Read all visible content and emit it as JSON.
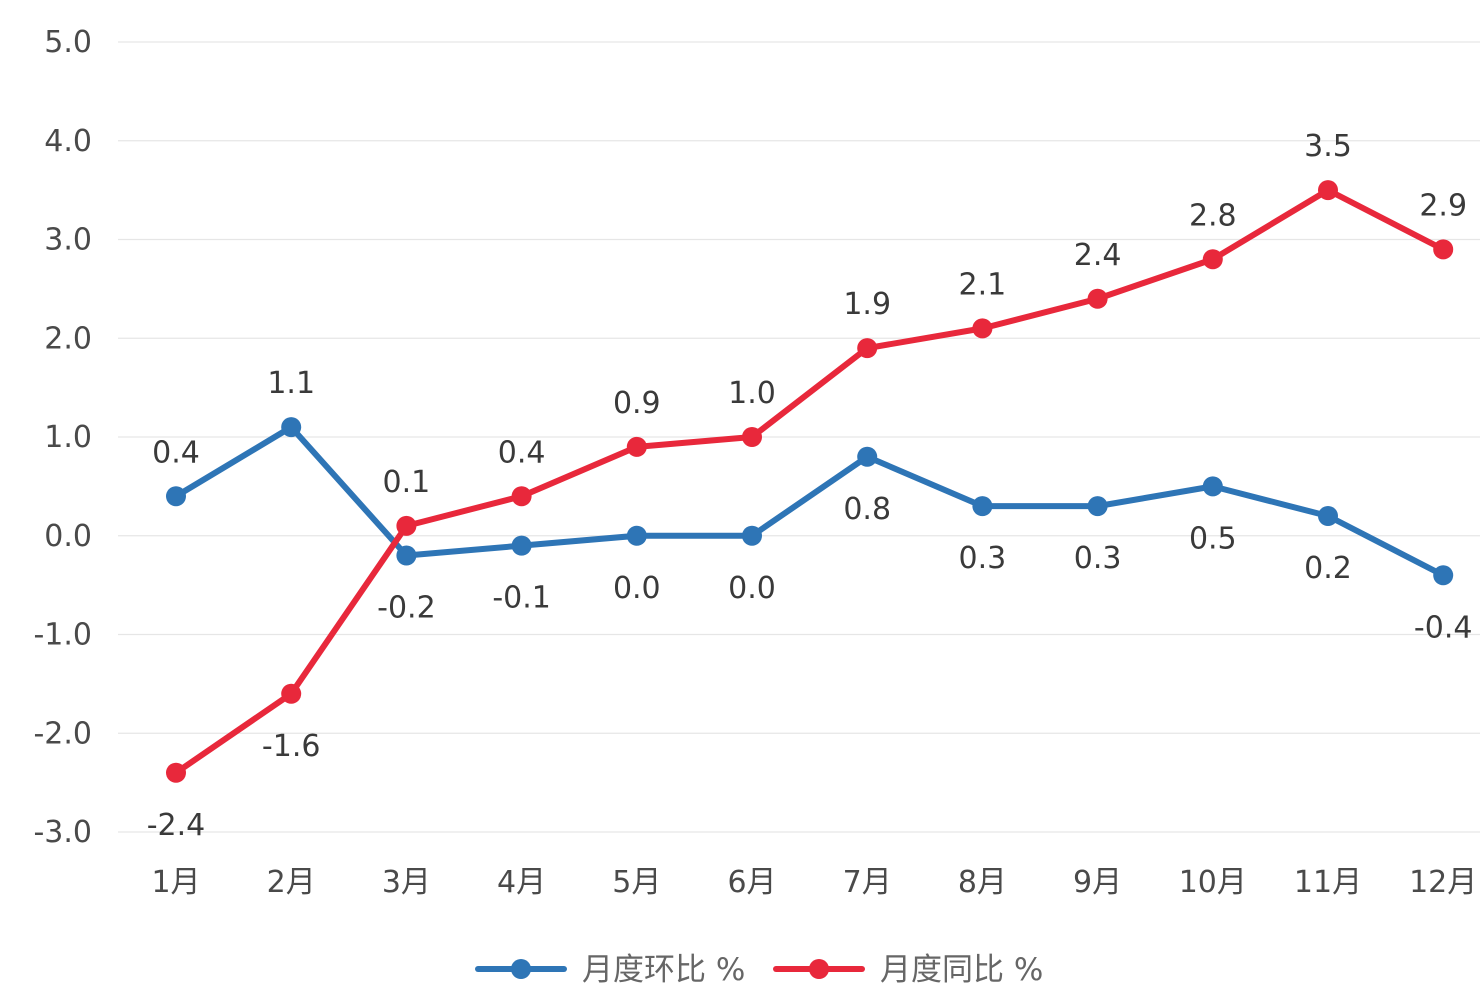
{
  "chart_data": {
    "type": "line",
    "categories": [
      "1月",
      "2月",
      "3月",
      "4月",
      "5月",
      "6月",
      "7月",
      "8月",
      "9月",
      "10月",
      "11月",
      "12月"
    ],
    "series": [
      {
        "name": "月度环比 %",
        "color": "#2e75b6",
        "values": [
          0.4,
          1.1,
          -0.2,
          -0.1,
          0.0,
          0.0,
          0.8,
          0.3,
          0.3,
          0.5,
          0.2,
          -0.4
        ],
        "data_labels": [
          "0.4",
          "1.1",
          "-0.2",
          "-0.1",
          "0.0",
          "0.0",
          "0.8",
          "0.3",
          "0.3",
          "0.5",
          "0.2",
          "-0.4"
        ]
      },
      {
        "name": "月度同比 %",
        "color": "#e8283b",
        "values": [
          -2.4,
          -1.6,
          0.1,
          0.4,
          0.9,
          1.0,
          1.9,
          2.1,
          2.4,
          2.8,
          3.5,
          2.9
        ],
        "data_labels": [
          "-2.4",
          "-1.6",
          "0.1",
          "0.4",
          "0.9",
          "1.0",
          "1.9",
          "2.1",
          "2.4",
          "2.8",
          "3.5",
          "2.9"
        ]
      }
    ],
    "ylim": [
      -3.0,
      5.0
    ],
    "yticks": [
      "-3.0",
      "-2.0",
      "-1.0",
      "0.0",
      "1.0",
      "2.0",
      "3.0",
      "4.0",
      "5.0"
    ],
    "ytick_values": [
      -3,
      -2,
      -1,
      0,
      1,
      2,
      3,
      4,
      5
    ],
    "grid": true,
    "legend_position": "bottom",
    "title": "",
    "xlabel": "",
    "ylabel": ""
  }
}
